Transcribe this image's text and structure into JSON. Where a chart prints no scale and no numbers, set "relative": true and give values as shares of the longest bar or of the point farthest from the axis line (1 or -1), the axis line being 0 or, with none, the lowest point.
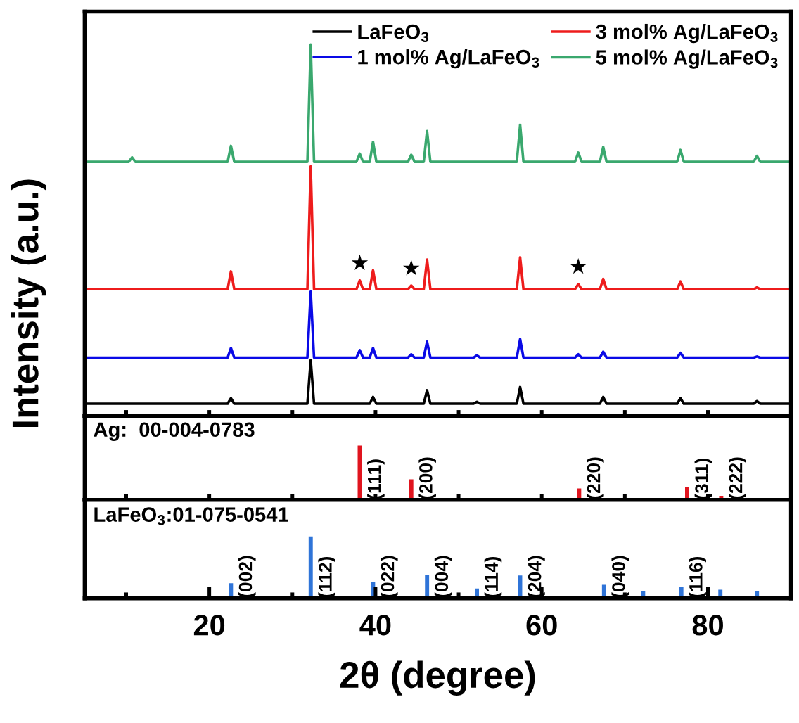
{
  "chart_data": [
    {
      "type": "line",
      "relative": true,
      "ylabel": "Intensity (a.u.)",
      "legend": "top",
      "xlim": [
        5,
        90
      ],
      "xticks": [
        {
          "value": 10,
          "label": null
        },
        {
          "value": 20,
          "label": null
        },
        {
          "value": 30,
          "label": null
        },
        {
          "value": 40,
          "label": null
        },
        {
          "value": 50,
          "label": null
        },
        {
          "value": 60,
          "label": null
        },
        {
          "value": 70,
          "label": null
        },
        {
          "value": 80,
          "label": null
        }
      ],
      "tick_labels": false,
      "series": [
        {
          "name": "LaFeO$_{3}$",
          "color": "#000000",
          "x": [
            5,
            22.2,
            22.6,
            23.0,
            31.8,
            32.2,
            32.6,
            39.3,
            39.7,
            40.1,
            45.8,
            46.2,
            46.6,
            51.8,
            52.2,
            52.6,
            57.0,
            57.4,
            57.8,
            67.0,
            67.4,
            67.8,
            76.3,
            76.7,
            77.1,
            85.5,
            85.9,
            86.3,
            90
          ],
          "values": [
            0.033,
            0.033,
            0.048,
            0.033,
            0.033,
            0.15,
            0.033,
            0.033,
            0.051,
            0.033,
            0.033,
            0.069,
            0.033,
            0.033,
            0.038,
            0.033,
            0.033,
            0.078,
            0.033,
            0.033,
            0.051,
            0.033,
            0.033,
            0.048,
            0.033,
            0.033,
            0.04,
            0.033,
            0.033
          ]
        },
        {
          "name": "1 mol% Ag/LaFeO$_{3}$",
          "color": "#0a0ae6",
          "x": [
            5,
            22.2,
            22.6,
            23.0,
            31.8,
            32.2,
            32.6,
            37.7,
            38.1,
            38.5,
            39.3,
            39.7,
            40.1,
            43.9,
            44.3,
            44.7,
            45.8,
            46.2,
            46.6,
            51.8,
            52.2,
            52.6,
            57.0,
            57.4,
            57.8,
            64.0,
            64.4,
            64.8,
            67.0,
            67.4,
            67.8,
            76.3,
            76.7,
            77.1,
            85.5,
            85.9,
            86.3,
            90
          ],
          "values": [
            0.157,
            0.157,
            0.183,
            0.157,
            0.157,
            0.335,
            0.157,
            0.157,
            0.177,
            0.157,
            0.157,
            0.183,
            0.157,
            0.157,
            0.166,
            0.157,
            0.157,
            0.2,
            0.157,
            0.157,
            0.163,
            0.157,
            0.157,
            0.207,
            0.157,
            0.157,
            0.166,
            0.157,
            0.157,
            0.173,
            0.157,
            0.157,
            0.17,
            0.157,
            0.157,
            0.16,
            0.157,
            0.157
          ]
        },
        {
          "name": "3 mol% Ag/LaFeO$_{3}$",
          "color": "#ee1c1c",
          "x": [
            5,
            22.2,
            22.6,
            23.0,
            31.8,
            32.2,
            32.6,
            37.7,
            38.1,
            38.5,
            39.3,
            39.7,
            40.1,
            43.9,
            44.3,
            44.7,
            45.8,
            46.2,
            46.6,
            57.0,
            57.4,
            57.8,
            64.0,
            64.4,
            64.8,
            67.0,
            67.4,
            67.8,
            76.3,
            76.7,
            77.1,
            85.5,
            85.9,
            86.3,
            90
          ],
          "values": [
            0.341,
            0.341,
            0.389,
            0.341,
            0.341,
            0.672,
            0.341,
            0.341,
            0.365,
            0.341,
            0.341,
            0.392,
            0.341,
            0.341,
            0.351,
            0.341,
            0.341,
            0.421,
            0.341,
            0.341,
            0.427,
            0.341,
            0.341,
            0.355,
            0.341,
            0.341,
            0.369,
            0.341,
            0.341,
            0.362,
            0.341,
            0.341,
            0.346,
            0.341,
            0.341
          ]
        },
        {
          "name": "5 mol% Ag/LaFeO$_{3}$",
          "color": "#3aa86e",
          "x": [
            5,
            10.3,
            10.7,
            11.1,
            22.2,
            22.6,
            23.0,
            31.8,
            32.2,
            32.6,
            37.7,
            38.1,
            38.5,
            39.3,
            39.7,
            40.1,
            43.9,
            44.3,
            44.7,
            45.8,
            46.2,
            46.6,
            57.0,
            57.4,
            57.8,
            64.0,
            64.4,
            64.8,
            67.0,
            67.4,
            67.8,
            76.3,
            76.7,
            77.1,
            85.5,
            85.9,
            86.3,
            90
          ],
          "values": [
            0.684,
            0.684,
            0.696,
            0.684,
            0.684,
            0.727,
            0.684,
            0.684,
            1.0,
            0.684,
            0.684,
            0.706,
            0.684,
            0.684,
            0.738,
            0.684,
            0.684,
            0.703,
            0.684,
            0.684,
            0.767,
            0.684,
            0.684,
            0.784,
            0.684,
            0.684,
            0.709,
            0.684,
            0.684,
            0.724,
            0.684,
            0.684,
            0.716,
            0.684,
            0.684,
            0.7,
            0.684,
            0.684
          ]
        }
      ],
      "annotations": [
        {
          "text": "★",
          "x": 38.1,
          "y": 0.365
        },
        {
          "text": "★",
          "x": 44.3,
          "y": 0.351
        },
        {
          "text": "★",
          "x": 64.4,
          "y": 0.355
        }
      ]
    },
    {
      "type": "bar",
      "relative": true,
      "title": "Ag:  00-004-0783",
      "xlim": [
        5,
        90
      ],
      "xticks": [
        {
          "value": 10,
          "label": null
        },
        {
          "value": 20,
          "label": null
        },
        {
          "value": 30,
          "label": null
        },
        {
          "value": 40,
          "label": null
        },
        {
          "value": 50,
          "label": null
        },
        {
          "value": 60,
          "label": null
        },
        {
          "value": 70,
          "label": null
        },
        {
          "value": 80,
          "label": null
        }
      ],
      "tick_labels": false,
      "x": [
        38.1,
        44.3,
        64.5,
        77.5,
        81.6
      ],
      "values": [
        1.0,
        0.38,
        0.21,
        0.23,
        0.075
      ],
      "colors": [
        "#e0141e",
        "#e0141e",
        "#e0141e",
        "#e0141e",
        "#e0141e"
      ],
      "annotations": [
        {
          "text": "(111)",
          "x": 38.1,
          "y": 0
        },
        {
          "text": "(200)",
          "x": 44.3,
          "y": 0
        },
        {
          "text": "(220)",
          "x": 64.5,
          "y": 0
        },
        {
          "text": "(311)",
          "x": 77.5,
          "y": 0
        },
        {
          "text": "(222)",
          "x": 81.6,
          "y": 0
        }
      ]
    },
    {
      "type": "bar",
      "relative": true,
      "title": "LaFeO$_{3}$:01-075-0541",
      "xlabel": "2θ (degree)",
      "xlim": [
        5,
        90
      ],
      "xticks": [
        {
          "value": 10,
          "label": null
        },
        20,
        {
          "value": 30,
          "label": null
        },
        40,
        {
          "value": 50,
          "label": null
        },
        60,
        {
          "value": 70,
          "label": null
        },
        80
      ],
      "tick_labels": "x",
      "x": [
        22.6,
        32.2,
        39.7,
        46.2,
        52.2,
        57.4,
        67.5,
        72.2,
        76.8,
        81.5,
        85.9
      ],
      "values": [
        0.245,
        1.0,
        0.27,
        0.38,
        0.16,
        0.37,
        0.22,
        0.12,
        0.19,
        0.14,
        0.12
      ],
      "colors": [
        "#2f74d8",
        "#2f74d8",
        "#2f74d8",
        "#2f74d8",
        "#2f74d8",
        "#2f74d8",
        "#2f74d8",
        "#2f74d8",
        "#2f74d8",
        "#2f74d8",
        "#2f74d8"
      ],
      "annotations": [
        {
          "text": "(002)",
          "x": 22.6,
          "y": 0
        },
        {
          "text": "(112)",
          "x": 32.2,
          "y": 0
        },
        {
          "text": "(022)",
          "x": 39.7,
          "y": 0
        },
        {
          "text": "(004)",
          "x": 46.2,
          "y": 0
        },
        {
          "text": "(114)",
          "x": 52.2,
          "y": 0
        },
        {
          "text": "(204)",
          "x": 57.4,
          "y": 0
        },
        {
          "text": "(040)",
          "x": 67.5,
          "y": 0
        },
        {
          "text": "(116)",
          "x": 76.8,
          "y": 0
        }
      ]
    }
  ]
}
